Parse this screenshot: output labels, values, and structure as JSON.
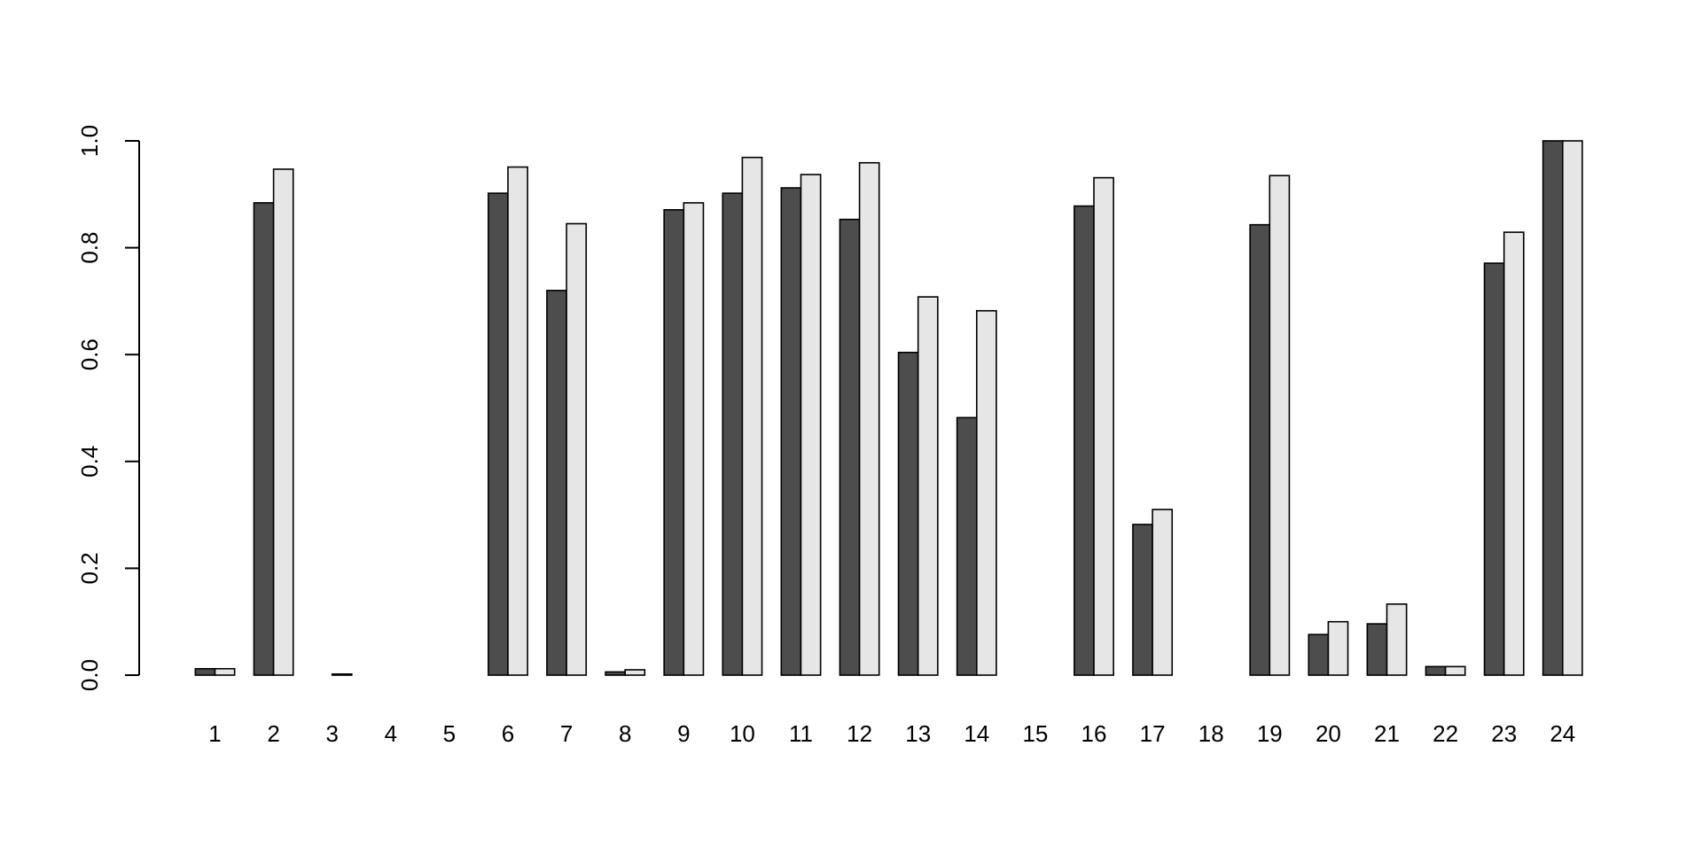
{
  "chart_data": {
    "type": "bar",
    "title": "",
    "xlabel": "",
    "ylabel": "",
    "ylim": [
      0,
      1
    ],
    "yticks": [
      "0.0",
      "0.2",
      "0.4",
      "0.6",
      "0.8",
      "1.0"
    ],
    "grid": false,
    "legend": "none",
    "categories": [
      "1",
      "2",
      "3",
      "4",
      "5",
      "6",
      "7",
      "8",
      "9",
      "10",
      "11",
      "12",
      "13",
      "14",
      "15",
      "16",
      "17",
      "18",
      "19",
      "20",
      "21",
      "22",
      "23",
      "24"
    ],
    "series": [
      {
        "color": "#4d4d4d",
        "values": [
          0.012,
          0.884,
          0.0,
          0.0,
          0.0,
          0.902,
          0.72,
          0.006,
          0.871,
          0.902,
          0.912,
          0.853,
          0.604,
          0.482,
          0.0,
          0.878,
          0.282,
          0.0,
          0.843,
          0.076,
          0.096,
          0.016,
          0.771,
          1.0
        ]
      },
      {
        "color": "#e6e6e6",
        "values": [
          0.012,
          0.947,
          0.002,
          0.0,
          0.0,
          0.951,
          0.845,
          0.01,
          0.884,
          0.969,
          0.937,
          0.959,
          0.708,
          0.682,
          0.0,
          0.931,
          0.31,
          0.0,
          0.935,
          0.1,
          0.133,
          0.016,
          0.829,
          1.0
        ]
      }
    ]
  }
}
